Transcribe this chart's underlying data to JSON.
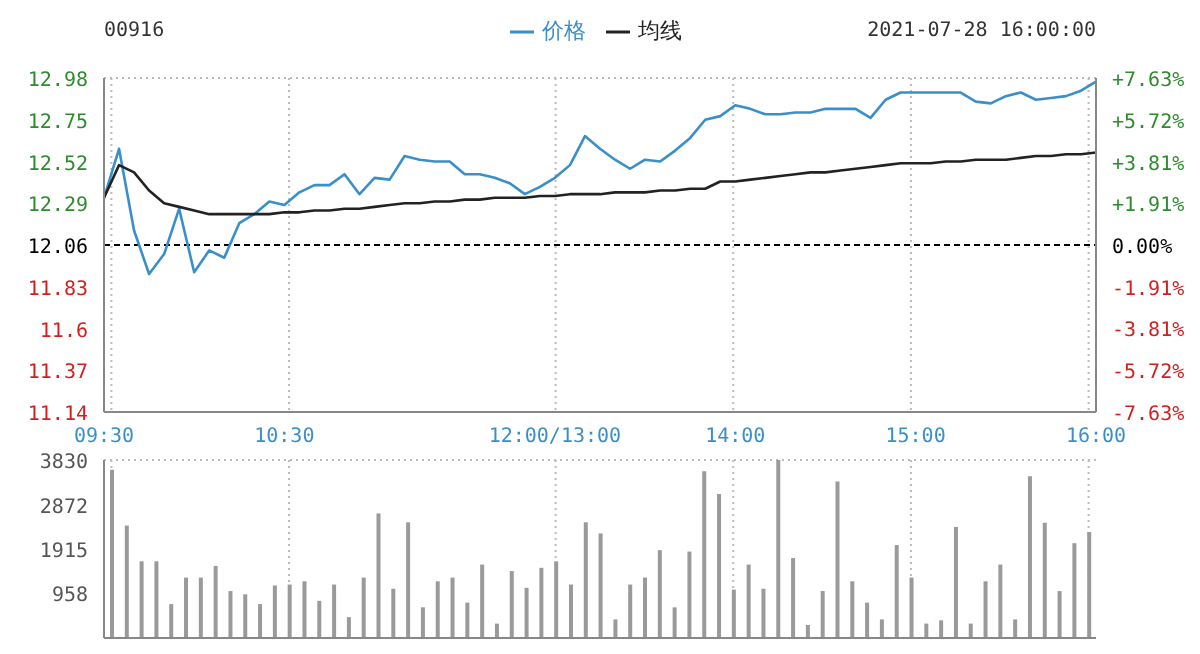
{
  "chart_data": [
    {
      "type": "line",
      "title": "00916",
      "subtitle": "2021-07-28 16:00:00",
      "legend": "top",
      "grid": true,
      "marker": "none",
      "line_style": "solid",
      "categories": [
        "09:30",
        null,
        null,
        null,
        null,
        null,
        null,
        null,
        null,
        null,
        null,
        null,
        "10:30",
        null,
        null,
        null,
        null,
        null,
        null,
        null,
        null,
        null,
        null,
        null,
        null,
        null,
        null,
        null,
        null,
        null,
        "12:00/13:00",
        null,
        null,
        null,
        null,
        null,
        null,
        null,
        null,
        null,
        null,
        null,
        "14:00",
        null,
        null,
        null,
        null,
        null,
        null,
        null,
        null,
        null,
        null,
        null,
        "15:00",
        null,
        null,
        null,
        null,
        null,
        null,
        null,
        null,
        null,
        null,
        null,
        "16:00"
      ],
      "ylim": [
        11.14,
        12.98
      ],
      "yticks": [
        11.14,
        11.37,
        11.6,
        11.83,
        12.06,
        12.29,
        12.52,
        12.75,
        12.98
      ],
      "y2lim": [
        -7.63,
        7.63
      ],
      "y2ticks": [
        {
          "value": -7.63,
          "label": "-7.63%"
        },
        {
          "value": -5.72,
          "label": "-5.72%"
        },
        {
          "value": -3.81,
          "label": "-3.81%"
        },
        {
          "value": -1.91,
          "label": "-1.91%"
        },
        {
          "value": 0,
          "label": "0.00%"
        },
        {
          "value": 1.91,
          "label": "+1.91%"
        },
        {
          "value": 3.81,
          "label": "+3.81%"
        },
        {
          "value": 5.72,
          "label": "+5.72%"
        },
        {
          "value": 7.63,
          "label": "+7.63%"
        }
      ],
      "ref_lines": [
        {
          "axis": "y",
          "value": 12.06,
          "color": "#000000",
          "line_style": "dashed"
        }
      ],
      "series": [
        {
          "name": "价格",
          "color": "#3a8fc8",
          "values": [
            12.32,
            12.59,
            12.14,
            11.9,
            12.01,
            12.26,
            11.91,
            12.03,
            11.99,
            12.18,
            12.23,
            12.3,
            12.28,
            12.35,
            12.39,
            12.39,
            12.45,
            12.34,
            12.43,
            12.42,
            12.55,
            12.53,
            12.52,
            12.52,
            12.45,
            12.45,
            12.43,
            12.4,
            12.34,
            12.38,
            12.43,
            12.5,
            12.66,
            12.59,
            12.53,
            12.48,
            12.53,
            12.52,
            12.58,
            12.65,
            12.75,
            12.77,
            12.83,
            12.81,
            12.78,
            12.78,
            12.79,
            12.79,
            12.81,
            12.81,
            12.81,
            12.76,
            12.86,
            12.9,
            12.9,
            12.9,
            12.9,
            12.9,
            12.85,
            12.84,
            12.88,
            12.9,
            12.86,
            12.87,
            12.88,
            12.91,
            12.96
          ]
        },
        {
          "name": "均线",
          "color": "#222222",
          "values": [
            12.32,
            12.5,
            12.46,
            12.36,
            12.29,
            12.27,
            12.25,
            12.23,
            12.23,
            12.23,
            12.23,
            12.23,
            12.24,
            12.24,
            12.25,
            12.25,
            12.26,
            12.26,
            12.27,
            12.28,
            12.29,
            12.29,
            12.3,
            12.3,
            12.31,
            12.31,
            12.32,
            12.32,
            12.32,
            12.33,
            12.33,
            12.34,
            12.34,
            12.34,
            12.35,
            12.35,
            12.35,
            12.36,
            12.36,
            12.37,
            12.37,
            12.41,
            12.41,
            12.42,
            12.43,
            12.44,
            12.45,
            12.46,
            12.46,
            12.47,
            12.48,
            12.49,
            12.5,
            12.51,
            12.51,
            12.51,
            12.52,
            12.52,
            12.53,
            12.53,
            12.53,
            12.54,
            12.55,
            12.55,
            12.56,
            12.56,
            12.57
          ]
        }
      ]
    },
    {
      "type": "bar",
      "grid": true,
      "tick_labels": "y",
      "categories": [
        null,
        null,
        null,
        null,
        null,
        null,
        null,
        null,
        null,
        null,
        null,
        null,
        null,
        null,
        null,
        null,
        null,
        null,
        null,
        null,
        null,
        null,
        null,
        null,
        null,
        null,
        null,
        null,
        null,
        null,
        null,
        null,
        null,
        null,
        null,
        null,
        null,
        null,
        null,
        null,
        null,
        null,
        null,
        null,
        null,
        null,
        null,
        null,
        null,
        null,
        null,
        null,
        null,
        null,
        null,
        null,
        null,
        null,
        null,
        null,
        null,
        null,
        null,
        null,
        null,
        null,
        null
      ],
      "ylim": [
        0,
        3830
      ],
      "yticks": [
        958,
        1915,
        2872,
        3830
      ],
      "series": [
        {
          "color": "#9a9a9a",
          "values": [
            3620,
            2420,
            1650,
            1650,
            730,
            1300,
            1300,
            1550,
            1010,
            940,
            730,
            1130,
            1150,
            1220,
            800,
            1150,
            450,
            1300,
            2680,
            1060,
            2490,
            660,
            1220,
            1300,
            760,
            1580,
            310,
            1440,
            1080,
            1510,
            1650,
            1150,
            2490,
            2250,
            400,
            1150,
            1300,
            1890,
            660,
            1860,
            3590,
            3100,
            1040,
            1580,
            1060,
            3830,
            1720,
            280,
            1010,
            3370,
            1220,
            760,
            400,
            2000,
            1300,
            310,
            380,
            2390,
            310,
            1220,
            1580,
            400,
            3480,
            2480,
            1010,
            2040,
            2280
          ]
        }
      ]
    }
  ]
}
